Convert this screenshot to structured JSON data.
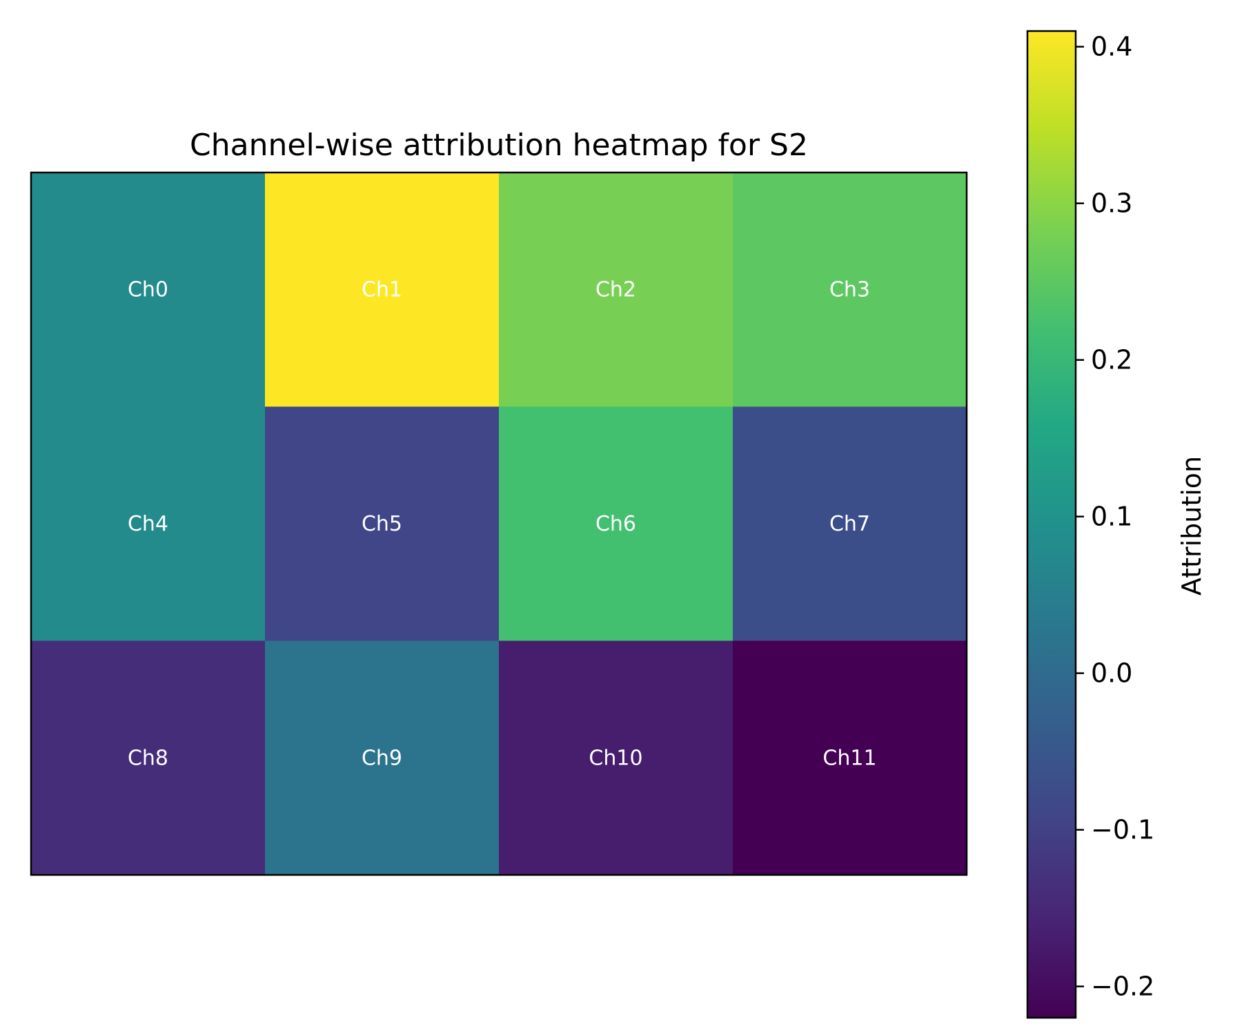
{
  "chart_data": {
    "type": "heatmap",
    "title": "Channel-wise attribution heatmap for S2",
    "rows": 3,
    "cols": 4,
    "cells": [
      {
        "label": "Ch0",
        "value": 0.08
      },
      {
        "label": "Ch1",
        "value": 0.41
      },
      {
        "label": "Ch2",
        "value": 0.28
      },
      {
        "label": "Ch3",
        "value": 0.25
      },
      {
        "label": "Ch4",
        "value": 0.08
      },
      {
        "label": "Ch5",
        "value": -0.09
      },
      {
        "label": "Ch6",
        "value": 0.22
      },
      {
        "label": "Ch7",
        "value": -0.07
      },
      {
        "label": "Ch8",
        "value": -0.14
      },
      {
        "label": "Ch9",
        "value": 0.02
      },
      {
        "label": "Ch10",
        "value": -0.17
      },
      {
        "label": "Ch11",
        "value": -0.22
      }
    ],
    "colorbar": {
      "label": "Attribution",
      "colormap": "viridis",
      "range": [
        -0.22,
        0.41
      ],
      "ticks": [
        {
          "value": 0.4,
          "label": "0.4"
        },
        {
          "value": 0.3,
          "label": "0.3"
        },
        {
          "value": 0.2,
          "label": "0.2"
        },
        {
          "value": 0.1,
          "label": "0.1"
        },
        {
          "value": 0.0,
          "label": "0.0"
        },
        {
          "value": -0.1,
          "label": "−0.1"
        },
        {
          "value": -0.2,
          "label": "−0.2"
        }
      ]
    }
  }
}
